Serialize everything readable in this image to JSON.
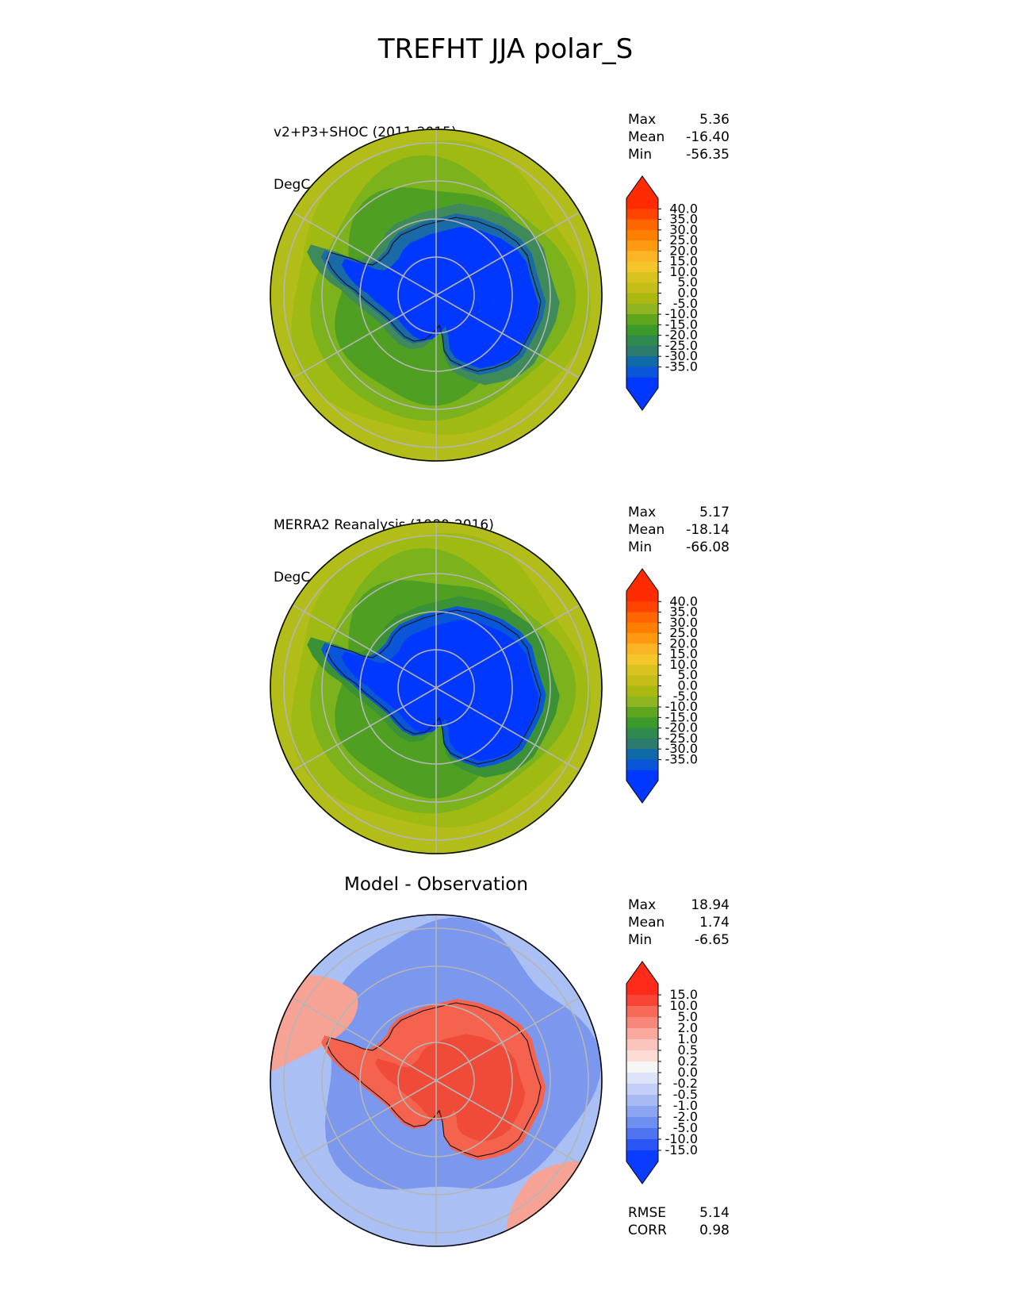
{
  "figure": {
    "title": "TREFHT JJA polar_S"
  },
  "panels": [
    {
      "id": "test",
      "label": "v2+P3+SHOC (2011-2015)",
      "units": "DegC",
      "stats": {
        "max_label": "Max",
        "max": "5.36",
        "mean_label": "Mean",
        "mean": "-16.40",
        "min_label": "Min",
        "min": "-56.35"
      },
      "colorbar": {
        "ticks": [
          "40.0",
          "35.0",
          "30.0",
          "25.0",
          "20.0",
          "15.0",
          "10.0",
          "5.0",
          "0.0",
          "-5.0",
          "-10.0",
          "-15.0",
          "-20.0",
          "-25.0",
          "-30.0",
          "-35.0"
        ],
        "colors": [
          "#ff2b00",
          "#ff4400",
          "#ff6600",
          "#ff7f00",
          "#ff9a10",
          "#fbb426",
          "#f4c62a",
          "#d9c41f",
          "#c6be18",
          "#aab80f",
          "#8fb520",
          "#5fa51e",
          "#3c9a2b",
          "#2e8a4e",
          "#2d7a6e",
          "#0f6aa8",
          "#0a56d8",
          "#0038ff"
        ],
        "under_color": "#0038ff",
        "over_color": "#ff2b00"
      },
      "map_colors": {
        "ocean_far": "#b2bd1a",
        "ocean_mid": "#9fba12",
        "ocean_near": "#7cb21c",
        "sea_ice": "#4fa022",
        "coast": "#3e8a5a",
        "interior_edge": "#1a6aa8",
        "interior": "#0038ff"
      }
    },
    {
      "id": "ref",
      "label": "MERRA2 Reanalysis (1980-2016)",
      "units": "DegC",
      "stats": {
        "max_label": "Max",
        "max": "5.17",
        "mean_label": "Mean",
        "mean": "-18.14",
        "min_label": "Min",
        "min": "-66.08"
      },
      "colorbar": {
        "ticks": [
          "40.0",
          "35.0",
          "30.0",
          "25.0",
          "20.0",
          "15.0",
          "10.0",
          "5.0",
          "0.0",
          "-5.0",
          "-10.0",
          "-15.0",
          "-20.0",
          "-25.0",
          "-30.0",
          "-35.0"
        ],
        "colors": [
          "#ff2b00",
          "#ff4400",
          "#ff6600",
          "#ff7f00",
          "#ff9a10",
          "#fbb426",
          "#f4c62a",
          "#d9c41f",
          "#c6be18",
          "#aab80f",
          "#8fb520",
          "#5fa51e",
          "#3c9a2b",
          "#2e8a4e",
          "#2d7a6e",
          "#0f6aa8",
          "#0a56d8",
          "#0038ff"
        ],
        "under_color": "#0038ff",
        "over_color": "#ff2b00"
      },
      "map_colors": {
        "ocean_far": "#b2bd1a",
        "ocean_mid": "#9fba12",
        "ocean_near": "#7cb21c",
        "sea_ice": "#4fa022",
        "coast": "#3b9236",
        "interior_edge": "#0a56d8",
        "interior": "#0038ff"
      }
    },
    {
      "id": "diff",
      "title": "Model - Observation",
      "stats": {
        "max_label": "Max",
        "max": "18.94",
        "mean_label": "Mean",
        "mean": "1.74",
        "min_label": "Min",
        "min": "-6.65"
      },
      "metrics": {
        "rmse_label": "RMSE",
        "rmse": "5.14",
        "corr_label": "CORR",
        "corr": "0.98"
      },
      "colorbar": {
        "ticks": [
          "15.0",
          "10.0",
          "5.0",
          "2.0",
          "1.0",
          "0.5",
          "0.2",
          "0.0",
          "-0.2",
          "-0.5",
          "-1.0",
          "-2.0",
          "-5.0",
          "-10.0",
          "-15.0"
        ],
        "colors": [
          "#ff2a1a",
          "#f84434",
          "#f76a58",
          "#f7877a",
          "#f9a99e",
          "#fbc5bd",
          "#fddcd6",
          "#f5f5f5",
          "#dde3f8",
          "#c3cff6",
          "#a7baf3",
          "#8ba5f0",
          "#6e8ff0",
          "#4f74f2",
          "#2a56f6",
          "#0a3cff"
        ],
        "under_color": "#0a3cff",
        "over_color": "#ff2a1a"
      },
      "map_colors": {
        "ocean": "#7c97ee",
        "ocean_light": "#aabff3",
        "pink": "#f6a396",
        "land": "#f5634f",
        "land_dark": "#f04a38"
      }
    }
  ]
}
